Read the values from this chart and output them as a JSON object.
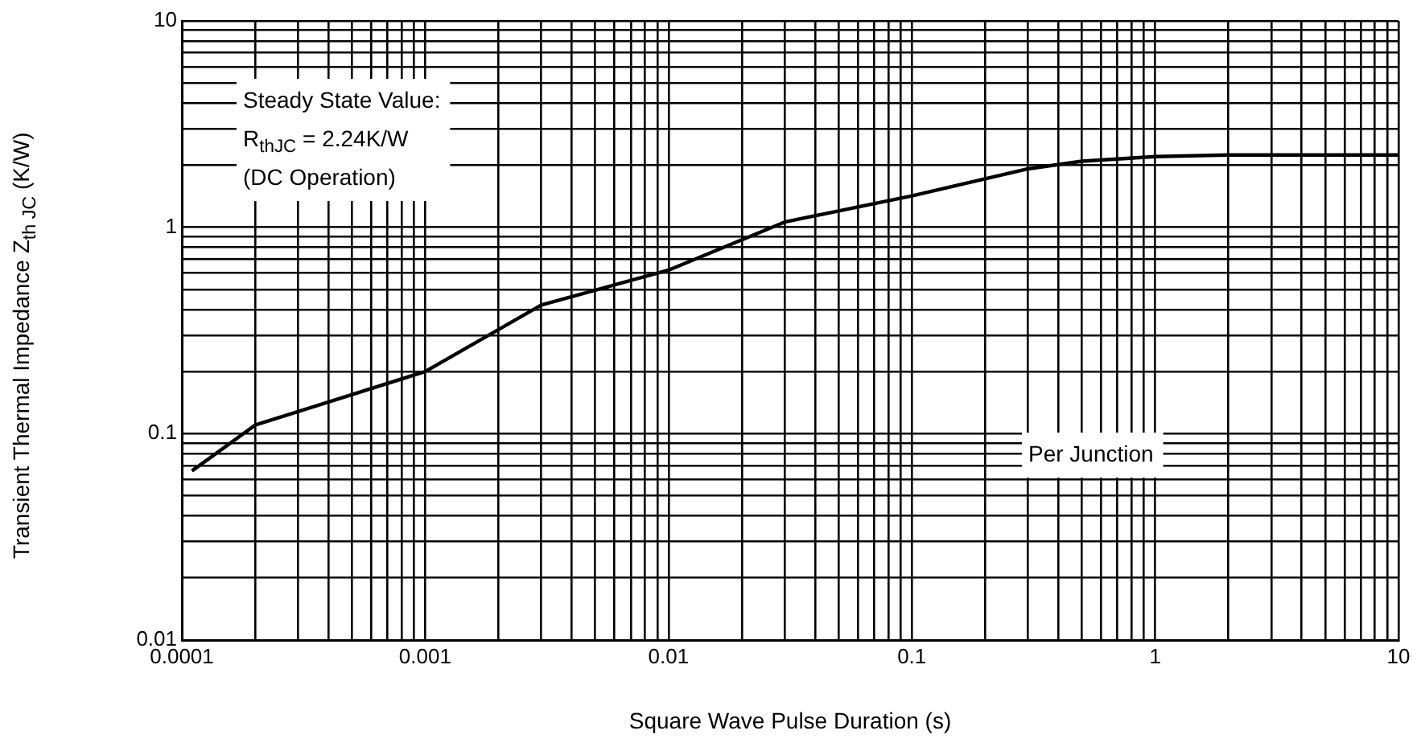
{
  "chart_data": {
    "type": "line",
    "xlabel": "Square Wave Pulse Duration (s)",
    "ylabel": "Transient Thermal Impedance Z$_{th JC}$ (K/W)",
    "annotations": [
      "Steady State Value:",
      "R$_{thJC}$ = 2.24K/W",
      "(DC Operation)",
      "Per Junction"
    ],
    "log": "xy",
    "grid": true,
    "legend": false,
    "marker": "none",
    "line_style": "solid",
    "xlim": [
      0.0001,
      10
    ],
    "ylim": [
      0.01,
      10
    ],
    "xticks": [
      0.0001,
      {
        "value": 0.0002,
        "label": null
      },
      {
        "value": 0.0003,
        "label": null
      },
      {
        "value": 0.0004,
        "label": null
      },
      {
        "value": 0.0005,
        "label": null
      },
      {
        "value": 0.0006,
        "label": null
      },
      {
        "value": 0.0007,
        "label": null
      },
      {
        "value": 0.0008,
        "label": null
      },
      {
        "value": 0.0009,
        "label": null
      },
      0.001,
      {
        "value": 0.002,
        "label": null
      },
      {
        "value": 0.003,
        "label": null
      },
      {
        "value": 0.004,
        "label": null
      },
      {
        "value": 0.005,
        "label": null
      },
      {
        "value": 0.006,
        "label": null
      },
      {
        "value": 0.007,
        "label": null
      },
      {
        "value": 0.008,
        "label": null
      },
      {
        "value": 0.009,
        "label": null
      },
      0.01,
      {
        "value": 0.02,
        "label": null
      },
      {
        "value": 0.03,
        "label": null
      },
      {
        "value": 0.04,
        "label": null
      },
      {
        "value": 0.05,
        "label": null
      },
      {
        "value": 0.06,
        "label": null
      },
      {
        "value": 0.07,
        "label": null
      },
      {
        "value": 0.08,
        "label": null
      },
      {
        "value": 0.09,
        "label": null
      },
      0.1,
      {
        "value": 0.2,
        "label": null
      },
      {
        "value": 0.3,
        "label": null
      },
      {
        "value": 0.4,
        "label": null
      },
      {
        "value": 0.5,
        "label": null
      },
      {
        "value": 0.6,
        "label": null
      },
      {
        "value": 0.7,
        "label": null
      },
      {
        "value": 0.8,
        "label": null
      },
      {
        "value": 0.9,
        "label": null
      },
      1,
      {
        "value": 2,
        "label": null
      },
      {
        "value": 3,
        "label": null
      },
      {
        "value": 4,
        "label": null
      },
      {
        "value": 5,
        "label": null
      },
      {
        "value": 6,
        "label": null
      },
      {
        "value": 7,
        "label": null
      },
      {
        "value": 8,
        "label": null
      },
      {
        "value": 9,
        "label": null
      },
      10
    ],
    "yticks": [
      0.01,
      {
        "value": 0.02,
        "label": null
      },
      {
        "value": 0.03,
        "label": null
      },
      {
        "value": 0.04,
        "label": null
      },
      {
        "value": 0.05,
        "label": null
      },
      {
        "value": 0.06,
        "label": null
      },
      {
        "value": 0.07,
        "label": null
      },
      {
        "value": 0.08,
        "label": null
      },
      {
        "value": 0.09,
        "label": null
      },
      0.1,
      {
        "value": 0.2,
        "label": null
      },
      {
        "value": 0.3,
        "label": null
      },
      {
        "value": 0.4,
        "label": null
      },
      {
        "value": 0.5,
        "label": null
      },
      {
        "value": 0.6,
        "label": null
      },
      {
        "value": 0.7,
        "label": null
      },
      {
        "value": 0.8,
        "label": null
      },
      {
        "value": 0.9,
        "label": null
      },
      1,
      {
        "value": 2,
        "label": null
      },
      {
        "value": 3,
        "label": null
      },
      {
        "value": 4,
        "label": null
      },
      {
        "value": 5,
        "label": null
      },
      {
        "value": 6,
        "label": null
      },
      {
        "value": 7,
        "label": null
      },
      {
        "value": 8,
        "label": null
      },
      {
        "value": 9,
        "label": null
      },
      10
    ],
    "series": [
      {
        "color": "#000000",
        "x": [
          0.00011,
          0.0002,
          0.001,
          0.003,
          0.01,
          0.03,
          0.05,
          0.1,
          0.3,
          0.5,
          1,
          2,
          10
        ],
        "values": [
          0.066,
          0.11,
          0.2,
          0.42,
          0.62,
          1.06,
          1.2,
          1.42,
          1.92,
          2.09,
          2.2,
          2.24,
          2.24
        ]
      }
    ]
  }
}
